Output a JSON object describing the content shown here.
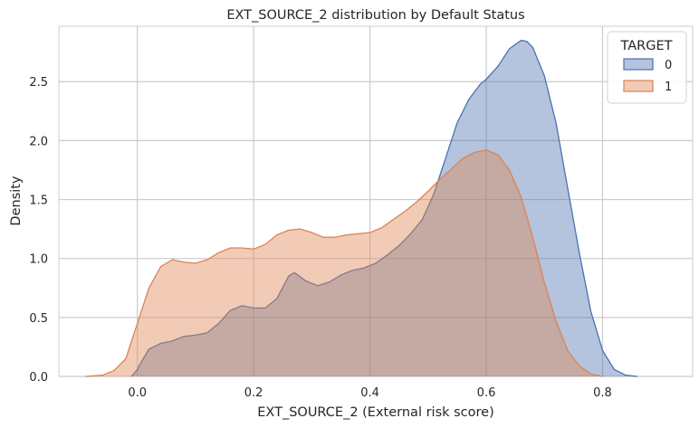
{
  "chart_data": {
    "type": "area",
    "title": "EXT_SOURCE_2 distribution by Default Status",
    "xlabel": "EXT_SOURCE_2 (External risk score)",
    "ylabel": "Density",
    "xlim": [
      -0.135,
      0.955
    ],
    "ylim": [
      0,
      2.97
    ],
    "xticks": [
      "0.0",
      "0.2",
      "0.4",
      "0.6",
      "0.8"
    ],
    "xtick_values": [
      0.0,
      0.2,
      0.4,
      0.6,
      0.8
    ],
    "yticks": [
      "0.0",
      "0.5",
      "1.0",
      "1.5",
      "2.0",
      "2.5"
    ],
    "ytick_values": [
      0.0,
      0.5,
      1.0,
      1.5,
      2.0,
      2.5
    ],
    "grid": true,
    "legend": {
      "title": "TARGET",
      "placement": "top-right"
    },
    "series": [
      {
        "name": "0",
        "color": "#4c72b0",
        "fill_opacity": 0.42,
        "points": [
          [
            -0.01,
            0.0
          ],
          [
            0.0,
            0.06
          ],
          [
            0.01,
            0.15
          ],
          [
            0.02,
            0.23
          ],
          [
            0.04,
            0.28
          ],
          [
            0.06,
            0.3
          ],
          [
            0.08,
            0.34
          ],
          [
            0.1,
            0.35
          ],
          [
            0.12,
            0.37
          ],
          [
            0.14,
            0.45
          ],
          [
            0.16,
            0.56
          ],
          [
            0.18,
            0.6
          ],
          [
            0.2,
            0.58
          ],
          [
            0.22,
            0.58
          ],
          [
            0.24,
            0.66
          ],
          [
            0.26,
            0.85
          ],
          [
            0.27,
            0.88
          ],
          [
            0.29,
            0.81
          ],
          [
            0.31,
            0.77
          ],
          [
            0.33,
            0.8
          ],
          [
            0.35,
            0.86
          ],
          [
            0.37,
            0.9
          ],
          [
            0.39,
            0.92
          ],
          [
            0.41,
            0.96
          ],
          [
            0.43,
            1.03
          ],
          [
            0.45,
            1.11
          ],
          [
            0.47,
            1.21
          ],
          [
            0.49,
            1.33
          ],
          [
            0.51,
            1.55
          ],
          [
            0.53,
            1.85
          ],
          [
            0.55,
            2.15
          ],
          [
            0.57,
            2.35
          ],
          [
            0.59,
            2.48
          ],
          [
            0.6,
            2.52
          ],
          [
            0.62,
            2.63
          ],
          [
            0.64,
            2.78
          ],
          [
            0.66,
            2.85
          ],
          [
            0.67,
            2.84
          ],
          [
            0.68,
            2.79
          ],
          [
            0.7,
            2.55
          ],
          [
            0.72,
            2.15
          ],
          [
            0.74,
            1.6
          ],
          [
            0.76,
            1.05
          ],
          [
            0.78,
            0.55
          ],
          [
            0.8,
            0.22
          ],
          [
            0.82,
            0.06
          ],
          [
            0.84,
            0.01
          ],
          [
            0.86,
            0.0
          ]
        ]
      },
      {
        "name": "1",
        "color": "#dd8452",
        "fill_opacity": 0.42,
        "points": [
          [
            -0.09,
            0.0
          ],
          [
            -0.06,
            0.01
          ],
          [
            -0.04,
            0.05
          ],
          [
            -0.02,
            0.15
          ],
          [
            0.0,
            0.45
          ],
          [
            0.02,
            0.75
          ],
          [
            0.04,
            0.93
          ],
          [
            0.06,
            0.99
          ],
          [
            0.08,
            0.97
          ],
          [
            0.1,
            0.96
          ],
          [
            0.12,
            0.99
          ],
          [
            0.14,
            1.05
          ],
          [
            0.16,
            1.09
          ],
          [
            0.18,
            1.09
          ],
          [
            0.2,
            1.08
          ],
          [
            0.22,
            1.12
          ],
          [
            0.24,
            1.2
          ],
          [
            0.26,
            1.24
          ],
          [
            0.28,
            1.25
          ],
          [
            0.3,
            1.22
          ],
          [
            0.32,
            1.18
          ],
          [
            0.34,
            1.18
          ],
          [
            0.36,
            1.2
          ],
          [
            0.38,
            1.21
          ],
          [
            0.4,
            1.22
          ],
          [
            0.42,
            1.26
          ],
          [
            0.44,
            1.33
          ],
          [
            0.46,
            1.4
          ],
          [
            0.48,
            1.48
          ],
          [
            0.5,
            1.57
          ],
          [
            0.52,
            1.67
          ],
          [
            0.54,
            1.76
          ],
          [
            0.56,
            1.85
          ],
          [
            0.58,
            1.9
          ],
          [
            0.6,
            1.92
          ],
          [
            0.62,
            1.88
          ],
          [
            0.64,
            1.75
          ],
          [
            0.66,
            1.52
          ],
          [
            0.68,
            1.18
          ],
          [
            0.7,
            0.8
          ],
          [
            0.72,
            0.47
          ],
          [
            0.74,
            0.22
          ],
          [
            0.76,
            0.09
          ],
          [
            0.78,
            0.02
          ],
          [
            0.8,
            0.0
          ]
        ]
      }
    ]
  }
}
